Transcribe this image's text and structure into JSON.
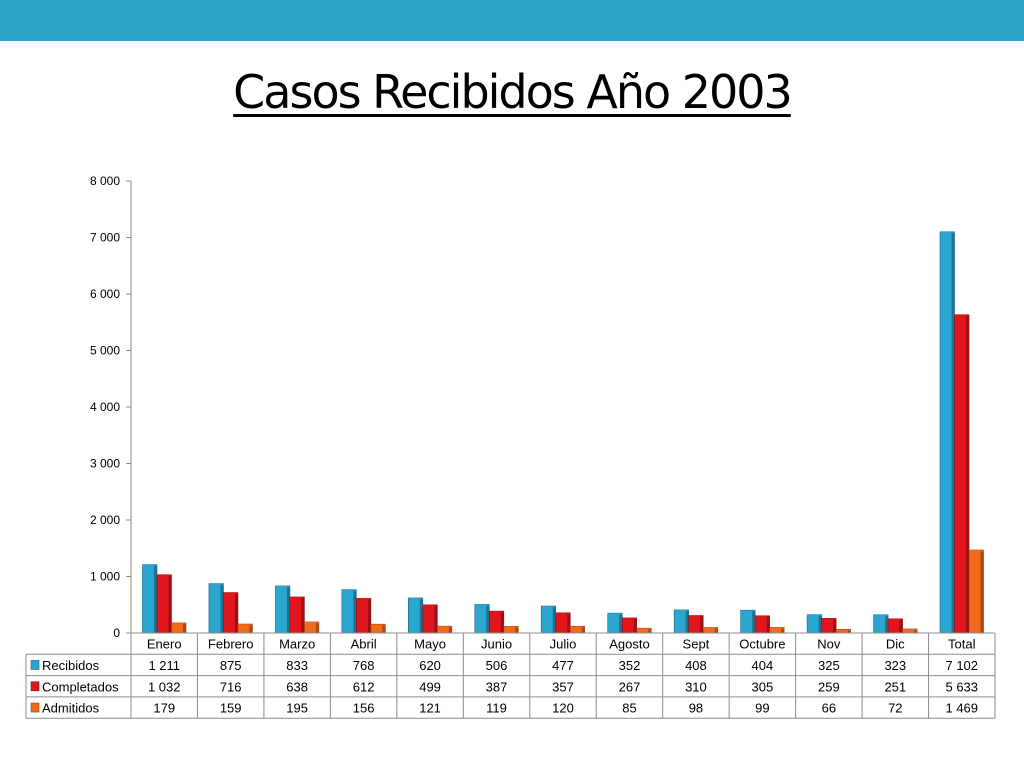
{
  "slide": {
    "title": "Casos Recibidos Año 2003",
    "accent_color": "#2ea3c5"
  },
  "chart_data": {
    "type": "bar",
    "with_data_table": true,
    "categories": [
      "Enero",
      "Febrero",
      "Marzo",
      "Abril",
      "Mayo",
      "Junio",
      "Julio",
      "Agosto",
      "Sept",
      "Octubre",
      "Nov",
      "Dic",
      "Total"
    ],
    "series": [
      {
        "name": "Recibidos",
        "color": "#2aa6d1",
        "values": [
          1211,
          875,
          833,
          768,
          620,
          506,
          477,
          352,
          408,
          404,
          325,
          323,
          7102
        ],
        "value_labels": [
          "1 211",
          "875",
          "833",
          "768",
          "620",
          "506",
          "477",
          "352",
          "408",
          "404",
          "325",
          "323",
          "7 102"
        ]
      },
      {
        "name": "Completados",
        "color": "#e0161c",
        "values": [
          1032,
          716,
          638,
          612,
          499,
          387,
          357,
          267,
          310,
          305,
          259,
          251,
          5633
        ],
        "value_labels": [
          "1 032",
          "716",
          "638",
          "612",
          "499",
          "387",
          "357",
          "267",
          "310",
          "305",
          "259",
          "251",
          "5 633"
        ]
      },
      {
        "name": "Admitidos",
        "color": "#f26a1b",
        "values": [
          179,
          159,
          195,
          156,
          121,
          119,
          120,
          85,
          98,
          99,
          66,
          72,
          1469
        ],
        "value_labels": [
          "179",
          "159",
          "195",
          "156",
          "121",
          "119",
          "120",
          "85",
          "98",
          "99",
          "66",
          "72",
          "1 469"
        ]
      }
    ],
    "ylim": [
      0,
      8000
    ],
    "yticks": [
      0,
      1000,
      2000,
      3000,
      4000,
      5000,
      6000,
      7000,
      8000
    ],
    "ytick_labels": [
      "0",
      "1 000",
      "2 000",
      "3 000",
      "4 000",
      "5 000",
      "6 000",
      "7 000",
      "8 000"
    ],
    "grid": false
  }
}
